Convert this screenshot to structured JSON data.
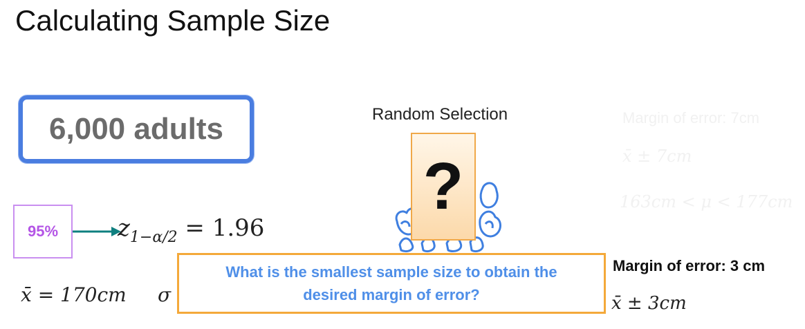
{
  "slide": {
    "title": "Calculating Sample Size",
    "population": "6,000 adults",
    "confidence": "95%",
    "z_expr": {
      "z": "z",
      "subscript": "1−α/2",
      "rhs": " = 1.96"
    },
    "xbar_expr": "x̄ = 170cm",
    "sigma_symbol": "σ",
    "random_selection_label": "Random Selection",
    "question_mark": "?",
    "faded": {
      "moe_7": "Margin of error: 7cm",
      "interval_7": "x̄ ± 7cm",
      "ci_7": "163cm < μ < 177cm"
    },
    "moe_3_label": "Margin of error: 3 cm",
    "interval_3": "x̄ ± 3cm",
    "question_lines": [
      "What is the smallest sample size to obtain the",
      "desired margin of error?"
    ]
  },
  "colors": {
    "population_border": "#4a7de0",
    "confidence_border": "#c98ff0",
    "confidence_text": "#b455e6",
    "arrow": "#0e7f7f",
    "people_stroke": "#3f7fe0",
    "question_border": "#f4a93a",
    "question_text": "#4f8fe8",
    "card_fill": "#fcd9aa"
  },
  "icons": {
    "arrow": "right-arrow-icon",
    "people": "people-crowd-icon"
  }
}
